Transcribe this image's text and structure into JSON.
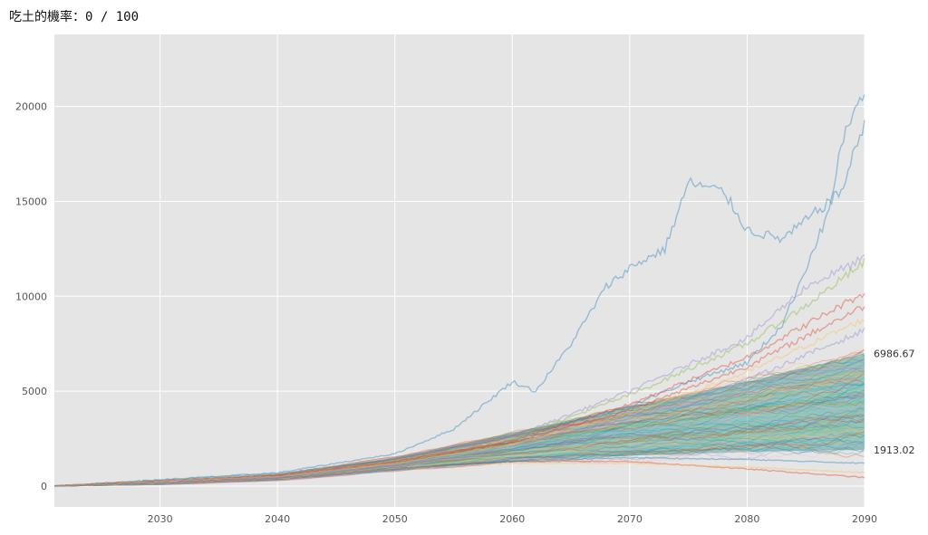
{
  "header": {
    "label": "吃土的機率：",
    "value": "0 / 100"
  },
  "chart_data": {
    "type": "line",
    "title": "",
    "xlabel": "",
    "ylabel": "",
    "xlim": [
      2021,
      2090
    ],
    "ylim": [
      -1100,
      23800
    ],
    "x_ticks": [
      2030,
      2040,
      2050,
      2060,
      2070,
      2080,
      2090
    ],
    "y_ticks": [
      0,
      5000,
      10000,
      15000,
      20000
    ],
    "grid": true,
    "legend": "none",
    "background": "#e5e5e5",
    "gridColor": "#ffffff",
    "palette": [
      "#348abd",
      "#e24a33",
      "#988ed5",
      "#8eba42",
      "#fbc15e",
      "#777777",
      "#ffb5b8",
      "#17becf"
    ],
    "series_count": 100,
    "start_value": 0,
    "end_labels": [
      {
        "x": 2090,
        "y": 6986.67,
        "text": "6986.67"
      },
      {
        "x": 2090,
        "y": 1913.02,
        "text": "1913.02"
      }
    ],
    "band_upper": {
      "x": [
        2021,
        2030,
        2040,
        2050,
        2060,
        2070,
        2080,
        2090
      ],
      "y": [
        0,
        150,
        600,
        1500,
        2800,
        4200,
        5500,
        6986.67
      ]
    },
    "band_lower": {
      "x": [
        2021,
        2030,
        2040,
        2050,
        2060,
        2070,
        2080,
        2090
      ],
      "y": [
        0,
        80,
        300,
        800,
        1300,
        1600,
        1800,
        1913.02
      ]
    },
    "highlight_paths": [
      {
        "name": "",
        "color": "#348abd",
        "x": [
          2021,
          2040,
          2050,
          2055,
          2060,
          2062,
          2065,
          2068,
          2070,
          2073,
          2075,
          2078,
          2080,
          2083,
          2085,
          2088,
          2090
        ],
        "y": [
          0,
          700,
          1700,
          3000,
          5500,
          5000,
          7500,
          10500,
          11500,
          12500,
          16000,
          15500,
          13500,
          13000,
          14000,
          15500,
          19200
        ]
      },
      {
        "name": "",
        "color": "#348abd",
        "x": [
          2021,
          2040,
          2050,
          2060,
          2070,
          2075,
          2080,
          2083,
          2085,
          2087,
          2088,
          2089,
          2090
        ],
        "y": [
          0,
          650,
          1400,
          2600,
          4200,
          5500,
          6500,
          8500,
          11500,
          14500,
          18000,
          19500,
          20500
        ]
      },
      {
        "name": "",
        "color": "#988ed5",
        "x": [
          2021,
          2040,
          2050,
          2060,
          2070,
          2080,
          2085,
          2090
        ],
        "y": [
          0,
          600,
          1300,
          2600,
          5000,
          7800,
          10500,
          12000
        ]
      },
      {
        "name": "",
        "color": "#8eba42",
        "x": [
          2021,
          2040,
          2050,
          2060,
          2070,
          2080,
          2085,
          2090
        ],
        "y": [
          0,
          600,
          1300,
          2500,
          4800,
          7500,
          9500,
          11800
        ]
      },
      {
        "name": "",
        "color": "#e24a33",
        "x": [
          2021,
          2040,
          2050,
          2060,
          2070,
          2080,
          2090
        ],
        "y": [
          0,
          550,
          1300,
          2400,
          4300,
          6800,
          10200
        ]
      },
      {
        "name": "",
        "color": "#e24a33",
        "x": [
          2021,
          2040,
          2050,
          2060,
          2070,
          2080,
          2090
        ],
        "y": [
          0,
          550,
          1200,
          2300,
          4000,
          6300,
          9500
        ]
      },
      {
        "name": "",
        "color": "#fbc15e",
        "x": [
          2021,
          2040,
          2050,
          2060,
          2070,
          2080,
          2090
        ],
        "y": [
          0,
          500,
          1200,
          2200,
          3800,
          6000,
          8800
        ]
      },
      {
        "name": "",
        "color": "#988ed5",
        "x": [
          2021,
          2040,
          2050,
          2060,
          2070,
          2080,
          2090
        ],
        "y": [
          0,
          500,
          1100,
          2100,
          3600,
          5600,
          8200
        ]
      },
      {
        "name": "",
        "color": "#e24a33",
        "x": [
          2021,
          2040,
          2050,
          2060,
          2070,
          2080,
          2090
        ],
        "y": [
          0,
          400,
          900,
          1300,
          1300,
          900,
          450
        ]
      },
      {
        "name": "",
        "color": "#fbc15e",
        "x": [
          2021,
          2040,
          2050,
          2060,
          2070,
          2080,
          2090
        ],
        "y": [
          0,
          400,
          900,
          1200,
          1200,
          1000,
          700
        ]
      },
      {
        "name": "",
        "color": "#348abd",
        "x": [
          2021,
          2040,
          2050,
          2060,
          2070,
          2080,
          2090
        ],
        "y": [
          0,
          400,
          900,
          1300,
          1500,
          1400,
          1200
        ]
      }
    ]
  }
}
